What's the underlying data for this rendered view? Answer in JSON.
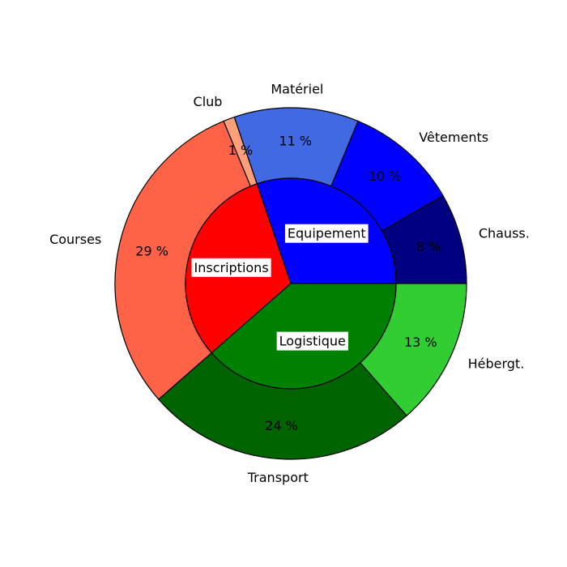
{
  "chart_data": {
    "type": "pie",
    "style": "nested-donut",
    "title": "",
    "outer": [
      {
        "label": "Chauss.",
        "value": 8,
        "pct_label": "8 %",
        "color": "#000080"
      },
      {
        "label": "Vêtements",
        "value": 10,
        "pct_label": "10 %",
        "color": "#0000FF"
      },
      {
        "label": "Matériel",
        "value": 11,
        "pct_label": "11 %",
        "color": "#4169E1"
      },
      {
        "label": "Club",
        "value": 1,
        "pct_label": "1 %",
        "color": "#FFA07A"
      },
      {
        "label": "Courses",
        "value": 29,
        "pct_label": "29 %",
        "color": "#FF6347"
      },
      {
        "label": "Transport",
        "value": 24,
        "pct_label": "24 %",
        "color": "#006400"
      },
      {
        "label": "Hébergt.",
        "value": 13,
        "pct_label": "13 %",
        "color": "#32CD32"
      }
    ],
    "inner": [
      {
        "label": "Equipement",
        "value": 29,
        "color": "#0000FF"
      },
      {
        "label": "Inscriptions",
        "value": 30,
        "color": "#FF0000"
      },
      {
        "label": "Logistique",
        "value": 37,
        "color": "#008000"
      }
    ],
    "start_angle_deg": 0,
    "direction": "counterclockwise",
    "edge_color": "#000000",
    "legend": "none"
  }
}
